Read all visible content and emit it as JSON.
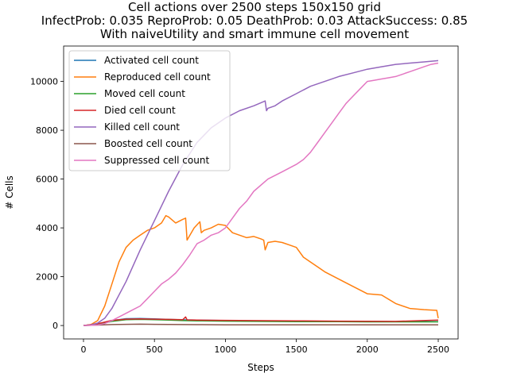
{
  "chart_data": {
    "type": "line",
    "title": [
      "Cell actions over 2500 steps 150x150 grid",
      "InfectProb: 0.035 ReproProb: 0.05 DeathProb: 0.03 AttackSuccess: 0.85",
      "With naiveUtility and smart immune cell movement"
    ],
    "xlabel": "Steps",
    "ylabel": "# Cells",
    "xlim": [
      -140,
      2640
    ],
    "ylim": [
      -550,
      11450
    ],
    "xticks": [
      0,
      500,
      1000,
      1500,
      2000,
      2500
    ],
    "yticks": [
      0,
      2000,
      4000,
      6000,
      8000,
      10000
    ],
    "grid": false,
    "legend_position": "upper-left",
    "series": [
      {
        "name": "Activated cell count",
        "color": "#1f77b4",
        "x": [
          0,
          100,
          200,
          300,
          400,
          500,
          600,
          700,
          800,
          1000,
          1200,
          1500,
          1800,
          2000,
          2200,
          2500
        ],
        "y": [
          0,
          60,
          200,
          280,
          290,
          270,
          250,
          230,
          220,
          200,
          190,
          180,
          170,
          165,
          160,
          160
        ]
      },
      {
        "name": "Reproduced cell count",
        "color": "#ff7f0e",
        "x": [
          0,
          50,
          100,
          150,
          200,
          250,
          300,
          350,
          400,
          450,
          500,
          550,
          580,
          600,
          650,
          700,
          720,
          730,
          780,
          820,
          830,
          850,
          900,
          950,
          1000,
          1050,
          1100,
          1150,
          1200,
          1250,
          1270,
          1280,
          1300,
          1350,
          1400,
          1450,
          1500,
          1550,
          1600,
          1650,
          1700,
          1800,
          1900,
          2000,
          2100,
          2200,
          2300,
          2400,
          2490,
          2500
        ],
        "y": [
          0,
          30,
          200,
          800,
          1700,
          2600,
          3200,
          3500,
          3700,
          3900,
          4000,
          4200,
          4500,
          4450,
          4200,
          4350,
          4400,
          3500,
          4000,
          4250,
          3800,
          3900,
          4000,
          4150,
          4100,
          3800,
          3700,
          3600,
          3650,
          3550,
          3500,
          3100,
          3400,
          3450,
          3400,
          3300,
          3200,
          2800,
          2600,
          2400,
          2200,
          1900,
          1600,
          1300,
          1250,
          900,
          700,
          650,
          620,
          300
        ]
      },
      {
        "name": "Moved cell count",
        "color": "#2ca02c",
        "x": [
          0,
          100,
          200,
          300,
          400,
          500,
          600,
          700,
          800,
          1000,
          1200,
          1500,
          1800,
          2000,
          2200,
          2500
        ],
        "y": [
          0,
          50,
          170,
          240,
          250,
          240,
          220,
          200,
          190,
          180,
          170,
          160,
          155,
          150,
          150,
          150
        ]
      },
      {
        "name": "Died cell count",
        "color": "#d62728",
        "x": [
          0,
          100,
          200,
          300,
          400,
          500,
          600,
          700,
          720,
          730,
          800,
          1000,
          1200,
          1500,
          1800,
          2000,
          2200,
          2500
        ],
        "y": [
          0,
          70,
          210,
          260,
          270,
          260,
          250,
          240,
          350,
          230,
          220,
          210,
          200,
          190,
          180,
          175,
          170,
          220
        ]
      },
      {
        "name": "Killed cell count",
        "color": "#9467bd",
        "x": [
          0,
          50,
          100,
          150,
          200,
          300,
          400,
          500,
          600,
          700,
          800,
          900,
          1000,
          1100,
          1200,
          1280,
          1290,
          1300,
          1350,
          1400,
          1500,
          1600,
          1700,
          1800,
          1900,
          2000,
          2100,
          2200,
          2300,
          2400,
          2500
        ],
        "y": [
          0,
          20,
          100,
          300,
          700,
          1800,
          3100,
          4300,
          5500,
          6600,
          7500,
          8100,
          8500,
          8800,
          9000,
          9200,
          8800,
          8900,
          9000,
          9200,
          9500,
          9800,
          10000,
          10200,
          10350,
          10500,
          10600,
          10700,
          10750,
          10800,
          10850
        ]
      },
      {
        "name": "Boosted cell count",
        "color": "#8c564b",
        "x": [
          0,
          100,
          200,
          300,
          400,
          500,
          600,
          700,
          800,
          1000,
          1200,
          1500,
          1800,
          2000,
          2200,
          2500
        ],
        "y": [
          0,
          20,
          40,
          50,
          55,
          50,
          45,
          40,
          35,
          30,
          30,
          25,
          25,
          25,
          25,
          30
        ]
      },
      {
        "name": "Suppressed cell count",
        "color": "#e377c2",
        "x": [
          0,
          100,
          150,
          200,
          250,
          300,
          350,
          400,
          450,
          500,
          550,
          600,
          650,
          700,
          750,
          800,
          850,
          900,
          950,
          1000,
          1050,
          1100,
          1150,
          1200,
          1300,
          1400,
          1500,
          1550,
          1600,
          1650,
          1700,
          1750,
          1800,
          1850,
          1900,
          1950,
          2000,
          2050,
          2100,
          2150,
          2200,
          2250,
          2300,
          2350,
          2400,
          2450,
          2500
        ],
        "y": [
          0,
          20,
          80,
          200,
          350,
          500,
          650,
          800,
          1100,
          1400,
          1700,
          1900,
          2150,
          2500,
          2900,
          3350,
          3500,
          3700,
          3800,
          4000,
          4400,
          4800,
          5100,
          5500,
          6000,
          6300,
          6600,
          6800,
          7100,
          7500,
          7900,
          8300,
          8700,
          9100,
          9400,
          9700,
          10000,
          10050,
          10100,
          10150,
          10200,
          10300,
          10400,
          10500,
          10600,
          10700,
          10750
        ]
      }
    ]
  }
}
